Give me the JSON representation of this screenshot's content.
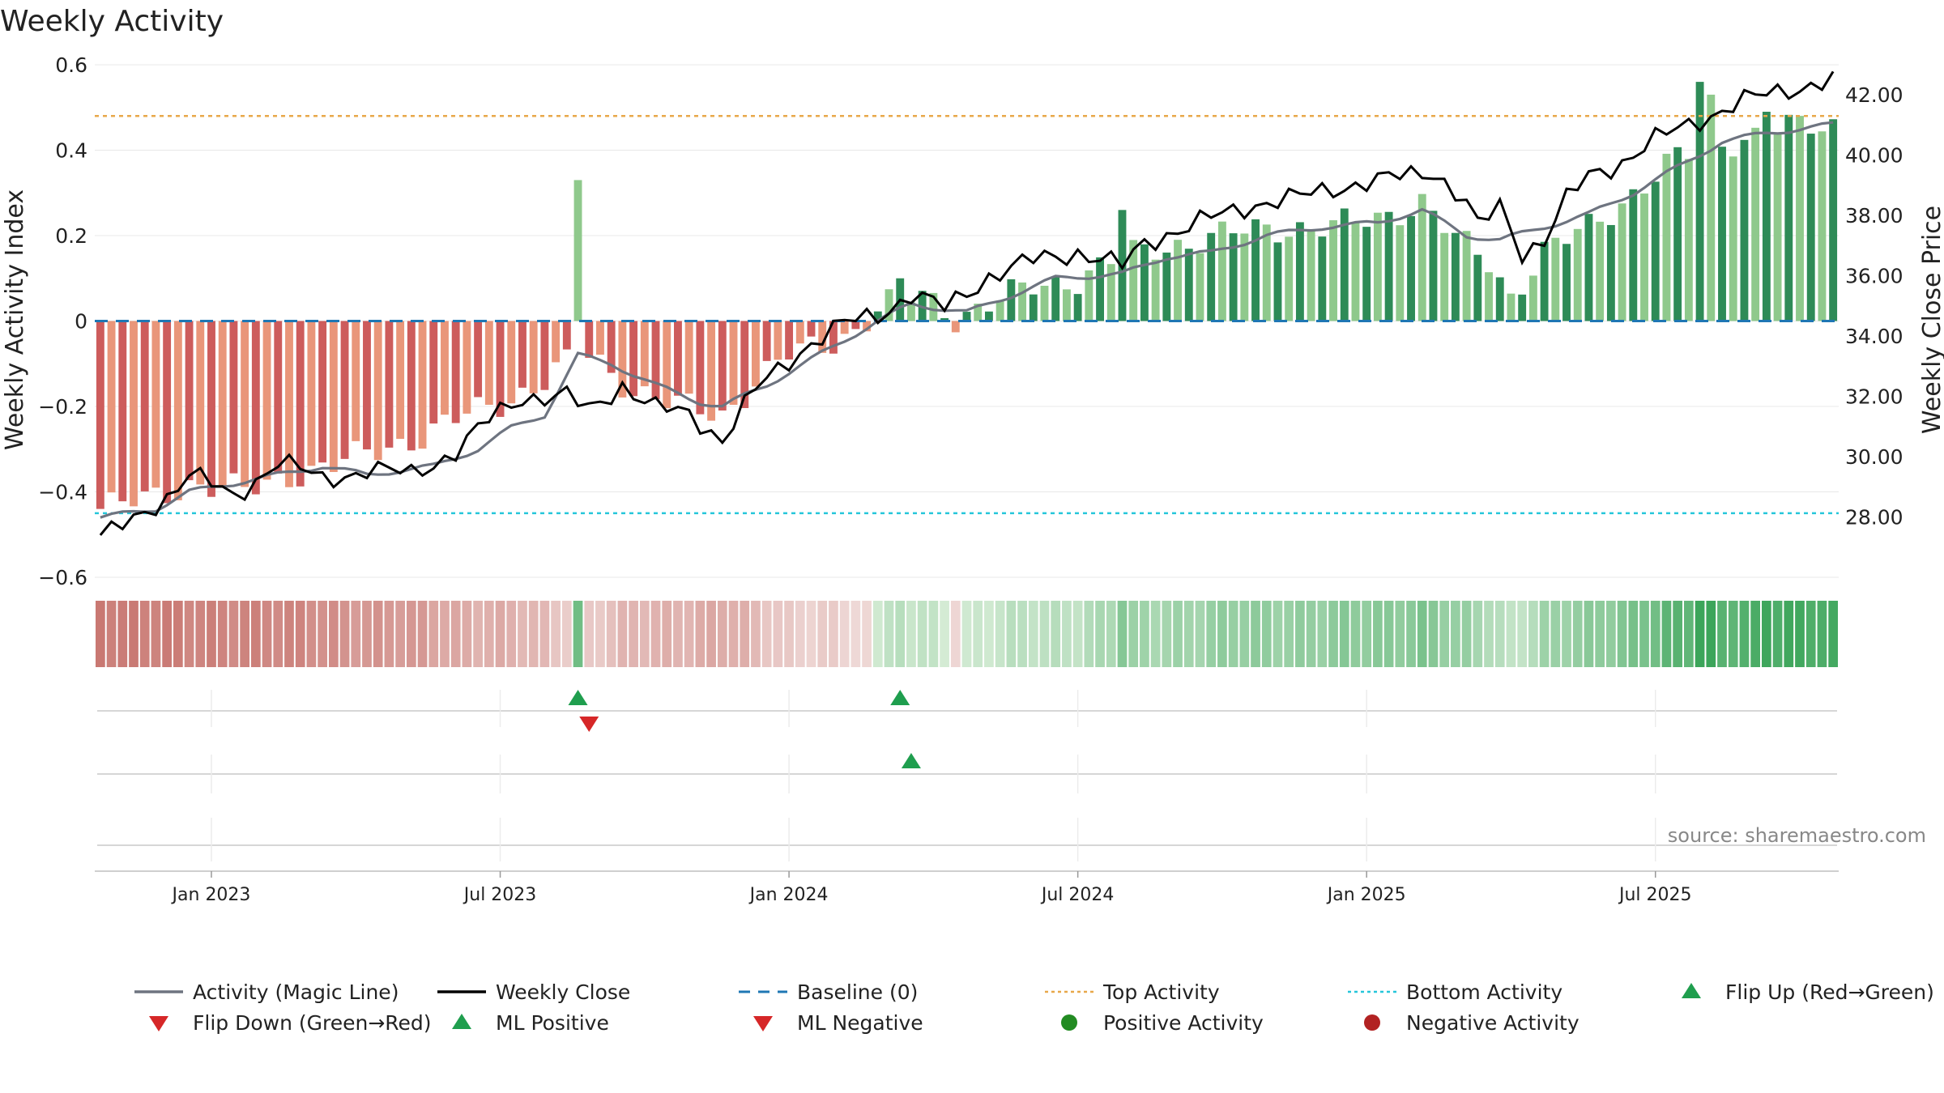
{
  "chart_data": {
    "type": "bar",
    "title": "Weekly Activity",
    "ylabel_left": "Weekly Activity Index",
    "ylabel_right": "Weekly Close Price",
    "xlabel": "",
    "ylim_left": [
      -0.6,
      0.6
    ],
    "ylim_right": [
      26.0,
      43.0
    ],
    "yticks_left": [
      {
        "value": 0.6,
        "label": "0.6"
      },
      {
        "value": 0.4,
        "label": "0.4"
      },
      {
        "value": 0.2,
        "label": "0.2"
      },
      {
        "value": 0.0,
        "label": "0"
      },
      {
        "value": -0.2,
        "label": "−0.2"
      },
      {
        "value": -0.4,
        "label": "−0.4"
      },
      {
        "value": -0.6,
        "label": "−0.6"
      }
    ],
    "yticks_right": [
      {
        "value": 42.0,
        "label": "42.00"
      },
      {
        "value": 40.0,
        "label": "40.00"
      },
      {
        "value": 38.0,
        "label": "38.00"
      },
      {
        "value": 36.0,
        "label": "36.00"
      },
      {
        "value": 34.0,
        "label": "34.00"
      },
      {
        "value": 32.0,
        "label": "32.00"
      },
      {
        "value": 30.0,
        "label": "30.00"
      },
      {
        "value": 28.0,
        "label": "28.00"
      }
    ],
    "xticks": [
      {
        "week": 10,
        "label": "Jan 2023"
      },
      {
        "week": 36,
        "label": "Jul 2023"
      },
      {
        "week": 62,
        "label": "Jan 2024"
      },
      {
        "week": 88,
        "label": "Jul 2024"
      },
      {
        "week": 114,
        "label": "Jan 2025"
      },
      {
        "week": 140,
        "label": "Jul 2025"
      }
    ],
    "week_count": 157,
    "reference_lines": {
      "top_activity": 0.48,
      "bottom_activity": -0.45,
      "baseline": 0.0
    },
    "anchor_points": {
      "activity": [
        [
          0,
          -0.46
        ],
        [
          5,
          -0.44
        ],
        [
          8,
          -0.4
        ],
        [
          12,
          -0.38
        ],
        [
          16,
          -0.36
        ],
        [
          20,
          -0.34
        ],
        [
          24,
          -0.36
        ],
        [
          27,
          -0.35
        ],
        [
          30,
          -0.34
        ],
        [
          34,
          -0.3
        ],
        [
          37,
          -0.25
        ],
        [
          40,
          -0.22
        ],
        [
          43,
          -0.08
        ],
        [
          46,
          -0.1
        ],
        [
          50,
          -0.15
        ],
        [
          54,
          -0.19
        ],
        [
          56,
          -0.2
        ],
        [
          60,
          -0.15
        ],
        [
          64,
          -0.09
        ],
        [
          68,
          -0.03
        ],
        [
          70,
          0.0
        ],
        [
          73,
          0.04
        ],
        [
          78,
          0.02
        ],
        [
          82,
          0.06
        ],
        [
          86,
          0.1
        ],
        [
          92,
          0.11
        ],
        [
          96,
          0.15
        ],
        [
          100,
          0.16
        ],
        [
          105,
          0.2
        ],
        [
          110,
          0.22
        ],
        [
          115,
          0.23
        ],
        [
          119,
          0.26
        ],
        [
          123,
          0.2
        ],
        [
          126,
          0.19
        ],
        [
          130,
          0.22
        ],
        [
          134,
          0.25
        ],
        [
          138,
          0.3
        ],
        [
          142,
          0.36
        ],
        [
          146,
          0.42
        ],
        [
          150,
          0.44
        ],
        [
          156,
          0.46
        ]
      ],
      "close": [
        [
          0,
          27.4
        ],
        [
          3,
          27.8
        ],
        [
          6,
          28.7
        ],
        [
          8,
          29.5
        ],
        [
          12,
          28.6
        ],
        [
          16,
          29.9
        ],
        [
          20,
          29.2
        ],
        [
          24,
          29.6
        ],
        [
          28,
          29.4
        ],
        [
          32,
          30.2
        ],
        [
          35,
          31.2
        ],
        [
          38,
          32.0
        ],
        [
          42,
          32.0
        ],
        [
          44,
          31.5
        ],
        [
          47,
          32.4
        ],
        [
          50,
          31.6
        ],
        [
          53,
          31.4
        ],
        [
          56,
          30.6
        ],
        [
          59,
          32.2
        ],
        [
          62,
          33.2
        ],
        [
          64,
          33.8
        ],
        [
          67,
          34.4
        ],
        [
          70,
          34.7
        ],
        [
          73,
          35.4
        ],
        [
          76,
          34.9
        ],
        [
          80,
          36.0
        ],
        [
          84,
          36.5
        ],
        [
          88,
          36.8
        ],
        [
          92,
          36.3
        ],
        [
          94,
          37.1
        ],
        [
          96,
          37.4
        ],
        [
          100,
          37.9
        ],
        [
          104,
          38.4
        ],
        [
          108,
          38.6
        ],
        [
          112,
          39.0
        ],
        [
          116,
          39.2
        ],
        [
          120,
          39.5
        ],
        [
          123,
          38.4
        ],
        [
          124,
          37.6
        ],
        [
          126,
          38.3
        ],
        [
          128,
          36.8
        ],
        [
          130,
          37.2
        ],
        [
          132,
          38.5
        ],
        [
          134,
          39.3
        ],
        [
          137,
          39.8
        ],
        [
          140,
          40.5
        ],
        [
          144,
          41.2
        ],
        [
          148,
          41.8
        ],
        [
          152,
          42.2
        ],
        [
          156,
          42.5
        ]
      ],
      "histogram": [
        [
          0,
          -0.44
        ],
        [
          4,
          -0.42
        ],
        [
          8,
          -0.38
        ],
        [
          13,
          -0.4
        ],
        [
          17,
          -0.36
        ],
        [
          21,
          -0.34
        ],
        [
          25,
          -0.3
        ],
        [
          29,
          -0.27
        ],
        [
          33,
          -0.22
        ],
        [
          37,
          -0.18
        ],
        [
          40,
          -0.14
        ],
        [
          42,
          -0.1
        ],
        [
          44,
          -0.08
        ],
        [
          48,
          -0.16
        ],
        [
          52,
          -0.2
        ],
        [
          56,
          -0.22
        ],
        [
          59,
          -0.14
        ],
        [
          62,
          -0.08
        ],
        [
          65,
          -0.06
        ],
        [
          68,
          -0.02
        ],
        [
          70,
          0.03
        ],
        [
          72,
          0.05
        ],
        [
          74,
          0.06
        ],
        [
          77,
          0.01
        ],
        [
          80,
          0.04
        ],
        [
          84,
          0.08
        ],
        [
          88,
          0.1
        ],
        [
          91,
          0.14
        ],
        [
          95,
          0.17
        ],
        [
          99,
          0.19
        ],
        [
          103,
          0.21
        ],
        [
          107,
          0.22
        ],
        [
          111,
          0.22
        ],
        [
          115,
          0.24
        ],
        [
          119,
          0.28
        ],
        [
          122,
          0.19
        ],
        [
          125,
          0.14
        ],
        [
          127,
          0.06
        ],
        [
          130,
          0.16
        ],
        [
          134,
          0.22
        ],
        [
          138,
          0.3
        ],
        [
          142,
          0.38
        ],
        [
          146,
          0.42
        ],
        [
          150,
          0.44
        ],
        [
          152,
          0.45
        ],
        [
          156,
          0.46
        ]
      ],
      "histogram_spikes": [
        [
          43,
          0.33
        ],
        [
          72,
          0.1
        ],
        [
          92,
          0.26
        ],
        [
          144,
          0.56
        ],
        [
          145,
          0.53
        ],
        [
          150,
          0.49
        ]
      ]
    },
    "bar_legend_note": "Bar shade alternates dark/light by week; red shades for negative, green for positive.",
    "signals": {
      "flip_up": [
        43,
        72
      ],
      "flip_down": [
        44
      ],
      "ml_positive": [
        73
      ],
      "ml_negative": [],
      "positive_activity": [],
      "negative_activity": []
    },
    "colors": {
      "neg_dark": "#cd5c5c",
      "neg_light": "#e9967a",
      "pos_dark": "#2e8b57",
      "pos_light": "#8fc98c",
      "activity_line": "#6e7480",
      "close_line": "#000000",
      "baseline": "#1f77b4",
      "top_activity": "#e8a84a",
      "bottom_activity": "#26c6da",
      "flip_up": "#1f9e4e",
      "flip_down": "#d62728",
      "positive_dot": "#228b22",
      "negative_dot": "#b22222"
    },
    "source": "source: sharemaestro.com",
    "legend": [
      {
        "label": "Activity (Magic Line)",
        "kind": "line-solid",
        "color": "#6e7480"
      },
      {
        "label": "Weekly Close",
        "kind": "line-solid",
        "color": "#000000"
      },
      {
        "label": "Baseline (0)",
        "kind": "line-dash",
        "color": "#1f77b4"
      },
      {
        "label": "Top Activity",
        "kind": "line-dot",
        "color": "#e8a84a"
      },
      {
        "label": "Bottom Activity",
        "kind": "line-dot",
        "color": "#26c6da"
      },
      {
        "label": "Flip Up (Red→Green)",
        "kind": "tri-up",
        "color": "#1f9e4e"
      },
      {
        "label": "Flip Down (Green→Red)",
        "kind": "tri-down",
        "color": "#d62728"
      },
      {
        "label": "ML Positive",
        "kind": "tri-up",
        "color": "#1f9e4e"
      },
      {
        "label": "ML Negative",
        "kind": "tri-down",
        "color": "#d62728"
      },
      {
        "label": "Positive Activity",
        "kind": "dot",
        "color": "#228b22"
      },
      {
        "label": "Negative Activity",
        "kind": "dot",
        "color": "#b22222"
      }
    ]
  }
}
